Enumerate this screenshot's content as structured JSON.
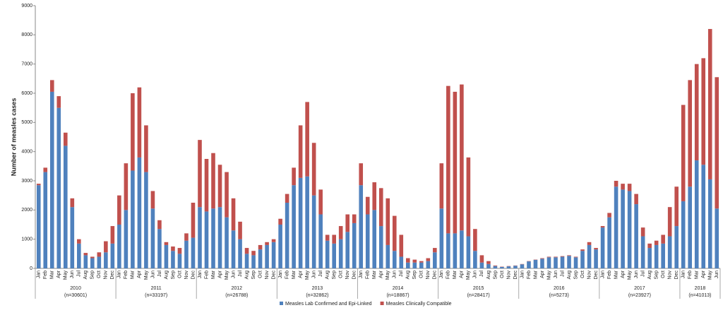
{
  "chart_data": {
    "type": "stacked-bar",
    "y_label": "Number of measles cases",
    "categories": [
      "Jan",
      "Feb",
      "Mar",
      "Apr",
      "May",
      "Jun",
      "Jul",
      "Aug",
      "Sep",
      "Oct",
      "Nov",
      "Dec",
      "Jan",
      "Feb",
      "Mar",
      "Apr",
      "May",
      "Jun",
      "Jul",
      "Aug",
      "Sep",
      "Oct",
      "Nov",
      "Dec",
      "Jan",
      "Feb",
      "Mar",
      "Apr",
      "May",
      "Jun",
      "Jul",
      "Aug",
      "Sep",
      "Oct",
      "Nov",
      "Dec",
      "Jan",
      "Feb",
      "Mar",
      "Apr",
      "May",
      "Jun",
      "Jul",
      "Aug",
      "Sep",
      "Oct",
      "Nov",
      "Dec",
      "Jan",
      "Feb",
      "Mar",
      "Apr",
      "May",
      "Jun",
      "Jul",
      "Aug",
      "Sep",
      "Oct",
      "Nov",
      "Dec",
      "Jan",
      "Feb",
      "Mar",
      "Apr",
      "May",
      "Jun",
      "Jul",
      "Aug",
      "Sep",
      "Oct",
      "Nov",
      "Dec",
      "Jan",
      "Feb",
      "Mar",
      "Apr",
      "May",
      "Jun",
      "Jul",
      "Aug",
      "Sep",
      "Oct",
      "Nov",
      "Dec",
      "Jan",
      "Feb",
      "Mar",
      "Apr",
      "May",
      "Jun",
      "Jul",
      "Aug",
      "Sep",
      "Oct",
      "Nov",
      "Dec",
      "Jan",
      "Feb",
      "Mar",
      "Apr",
      "May",
      "Jun"
    ],
    "groups": [
      {
        "label": "2010",
        "n": "(n=30601)"
      },
      {
        "label": "2011",
        "n": "(n=33197)"
      },
      {
        "label": "2012",
        "n": "(n=26788)"
      },
      {
        "label": "2013",
        "n": "(n=32862)"
      },
      {
        "label": "2014",
        "n": "(n=18867)"
      },
      {
        "label": "2015",
        "n": "(n=28417)"
      },
      {
        "label": "2016",
        "n": "(n=5273)"
      },
      {
        "label": "2017",
        "n": "(n=23927)"
      },
      {
        "label": "2018",
        "n": "(n=41013)"
      }
    ],
    "series": [
      {
        "name": "Measles Lab Confirmed and Epi-Linked",
        "color": "#4f81bd",
        "values": [
          2850,
          3300,
          6050,
          5500,
          4200,
          2100,
          850,
          450,
          350,
          400,
          550,
          850,
          1500,
          2000,
          3350,
          3800,
          3300,
          2050,
          1350,
          800,
          600,
          500,
          950,
          1050,
          2100,
          1950,
          2050,
          2100,
          1750,
          1300,
          1000,
          500,
          450,
          650,
          800,
          900,
          1500,
          2250,
          2850,
          3100,
          3150,
          2500,
          1850,
          950,
          850,
          1000,
          1250,
          1550,
          2850,
          1850,
          2000,
          1450,
          800,
          600,
          400,
          200,
          200,
          200,
          250,
          550,
          2050,
          1200,
          1200,
          1300,
          1100,
          600,
          200,
          150,
          80,
          50,
          70,
          90,
          140,
          240,
          290,
          330,
          380,
          380,
          400,
          430,
          380,
          600,
          800,
          650,
          1400,
          1750,
          2800,
          2700,
          2650,
          2200,
          1100,
          700,
          800,
          850,
          1100,
          1450,
          2300,
          2800,
          3700,
          3550,
          3050,
          2050
        ]
      },
      {
        "name": "Measles Clinically Compatible",
        "color": "#c0504d",
        "values": [
          50,
          150,
          400,
          400,
          450,
          300,
          150,
          80,
          50,
          150,
          380,
          600,
          1000,
          1600,
          2650,
          2400,
          1600,
          600,
          300,
          100,
          150,
          200,
          250,
          1200,
          2300,
          1800,
          1900,
          1450,
          1550,
          1100,
          600,
          200,
          150,
          150,
          100,
          100,
          200,
          300,
          600,
          1800,
          2550,
          1800,
          850,
          200,
          300,
          450,
          600,
          300,
          750,
          600,
          950,
          1300,
          1600,
          1200,
          750,
          150,
          100,
          50,
          100,
          150,
          1550,
          5050,
          4850,
          5000,
          2700,
          750,
          250,
          100,
          20,
          10,
          10,
          10,
          10,
          10,
          10,
          20,
          20,
          20,
          20,
          20,
          20,
          50,
          100,
          50,
          50,
          150,
          200,
          200,
          250,
          350,
          300,
          150,
          150,
          300,
          1000,
          1350,
          3300,
          3650,
          3300,
          3650,
          5150,
          4500
        ]
      }
    ],
    "ylim": [
      0,
      9000
    ],
    "yticks": [
      0,
      1000,
      2000,
      3000,
      4000,
      5000,
      6000,
      7000,
      8000,
      9000
    ],
    "grid": false
  }
}
